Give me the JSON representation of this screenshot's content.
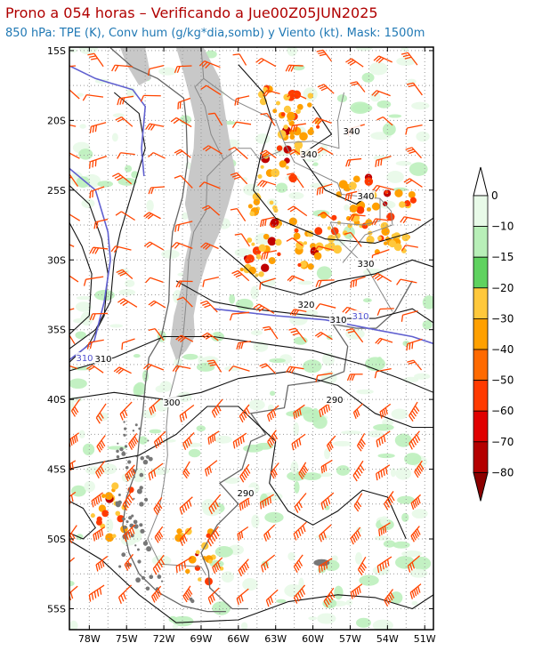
{
  "header": {
    "title": "Prono a 054 horas – Verificando a Jue00Z05JUN2025",
    "subtitle": "850 hPa: TPE (K), Conv hum (g/kg*dia,somb) y Viento (kt). Mask: 1500m"
  },
  "map": {
    "lat_labels": [
      "15S",
      "20S",
      "25S",
      "30S",
      "35S",
      "40S",
      "45S",
      "50S",
      "55S"
    ],
    "lon_labels": [
      "78W",
      "75W",
      "72W",
      "69W",
      "66W",
      "63W",
      "60W",
      "57W",
      "54W",
      "51W"
    ],
    "contour_labels": [
      "340",
      "340",
      "340",
      "330",
      "320",
      "310",
      "310",
      "310",
      "310",
      "300",
      "290",
      "290"
    ]
  },
  "colorbar": {
    "labels": [
      "0",
      "−10",
      "−15",
      "−20",
      "−30",
      "−40",
      "−50",
      "−60",
      "−70",
      "−80"
    ],
    "colors": [
      "#ffffff",
      "#e8fae8",
      "#b8efb8",
      "#5fd25f",
      "#ffc83c",
      "#ffa000",
      "#ff6a00",
      "#ff3a00",
      "#e00000",
      "#b40000",
      "#8c0000"
    ]
  }
}
